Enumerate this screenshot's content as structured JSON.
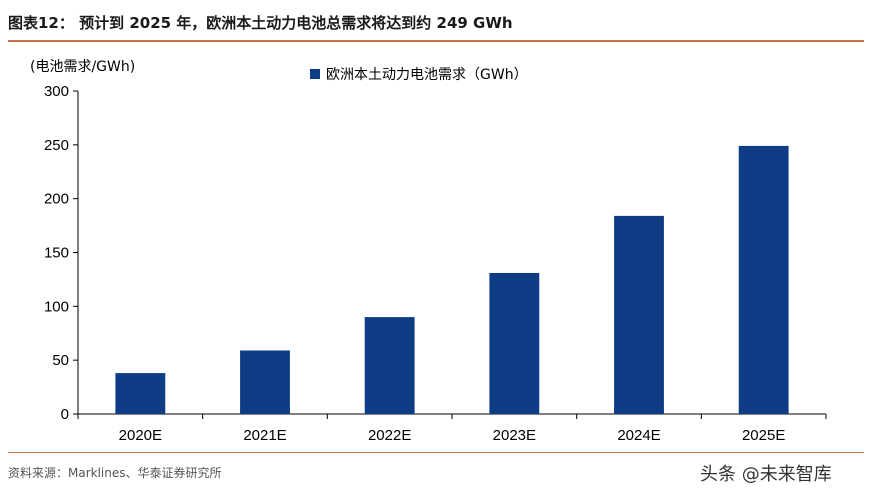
{
  "figure": {
    "title": "图表12：  预计到 2025 年，欧洲本土动力电池总需求将达到约 249 GWh",
    "source": "资料来源：Marklines、华泰证券研究所",
    "watermark": "头条 @未来智库"
  },
  "chart_data": {
    "type": "bar",
    "title": "",
    "xlabel": "",
    "ylabel": "(电池需求/GWh)",
    "categories": [
      "2020E",
      "2021E",
      "2022E",
      "2023E",
      "2024E",
      "2025E"
    ],
    "series": [
      {
        "name": "欧洲本土动力电池需求（GWh）",
        "values": [
          38,
          59,
          90,
          131,
          184,
          249
        ]
      }
    ],
    "ylim": [
      0,
      300
    ],
    "yticks": [
      0,
      50,
      100,
      150,
      200,
      250,
      300
    ],
    "grid": false,
    "legend_position": "top-center",
    "colors": {
      "bar": "#0e3d86",
      "axis": "#000000"
    }
  }
}
